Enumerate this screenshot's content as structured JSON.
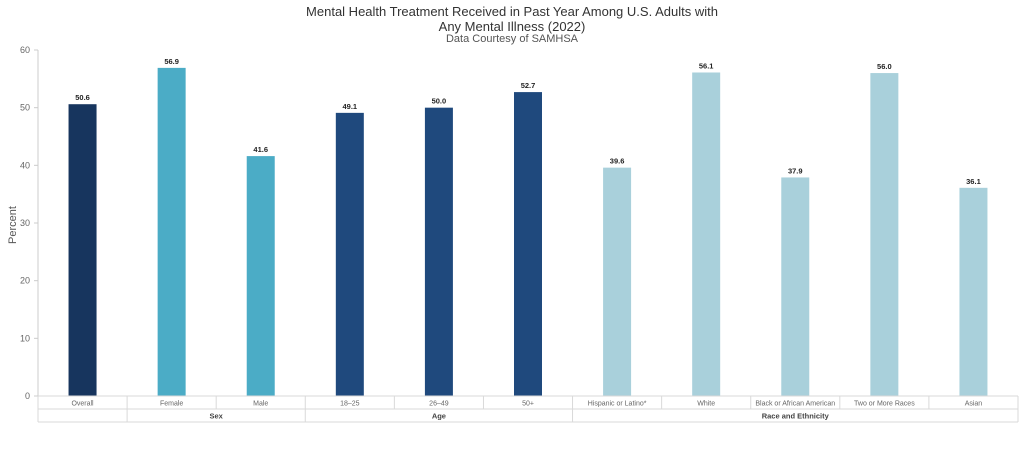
{
  "chart_data": {
    "type": "bar",
    "title_line1": "Mental Health Treatment Received in Past Year Among U.S. Adults with",
    "title_line2": "Any Mental Illness (2022)",
    "subtitle": "Data Courtesy of SAMHSA",
    "ylabel": "Percent",
    "xlabel": "",
    "ylim": [
      0,
      60
    ],
    "yticks": [
      0,
      10,
      20,
      30,
      40,
      50,
      60
    ],
    "grid": false,
    "legend": "none",
    "categories": [
      "Overall",
      "Female",
      "Male",
      "18–25",
      "26–49",
      "50+",
      "Hispanic or Latino*",
      "White",
      "Black or African American",
      "Two or More Races",
      "Asian"
    ],
    "values": [
      50.6,
      56.9,
      41.6,
      49.1,
      50.0,
      52.7,
      39.6,
      56.1,
      37.9,
      56.0,
      36.1
    ],
    "value_labels": [
      "50.6",
      "56.9",
      "41.6",
      "49.1",
      "50.0",
      "52.7",
      "39.6",
      "56.1",
      "37.9",
      "56.0",
      "36.1"
    ],
    "bar_colors": [
      "#17355e",
      "#4bacc6",
      "#4bacc6",
      "#1f497d",
      "#1f497d",
      "#1f497d",
      "#a9d0db",
      "#a9d0db",
      "#a9d0db",
      "#a9d0db",
      "#a9d0db"
    ],
    "groups": [
      {
        "label": "",
        "start": 0,
        "count": 1
      },
      {
        "label": "Sex",
        "start": 1,
        "count": 2
      },
      {
        "label": "Age",
        "start": 3,
        "count": 3
      },
      {
        "label": "Race and Ethnicity",
        "start": 6,
        "count": 5
      }
    ]
  }
}
